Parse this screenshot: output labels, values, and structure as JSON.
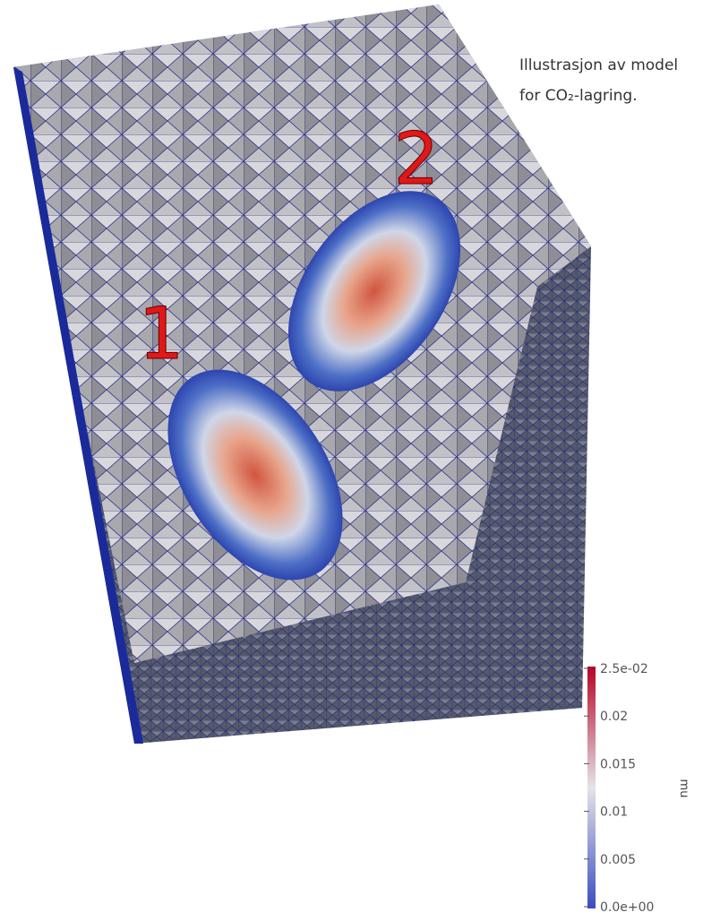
{
  "caption": {
    "lines": [
      "Illustrasjon av model",
      "for CO₂-lagring."
    ]
  },
  "figure": {
    "labels": [
      "1",
      "2"
    ]
  },
  "colorbar": {
    "label": "mu",
    "lim": [
      0,
      0.025
    ],
    "ticks": [
      {
        "value": 0.025,
        "label": "2.5e-02"
      },
      0.02,
      0.015,
      0.01,
      0.005,
      {
        "value": 0,
        "label": "0.0e+00"
      }
    ]
  }
}
